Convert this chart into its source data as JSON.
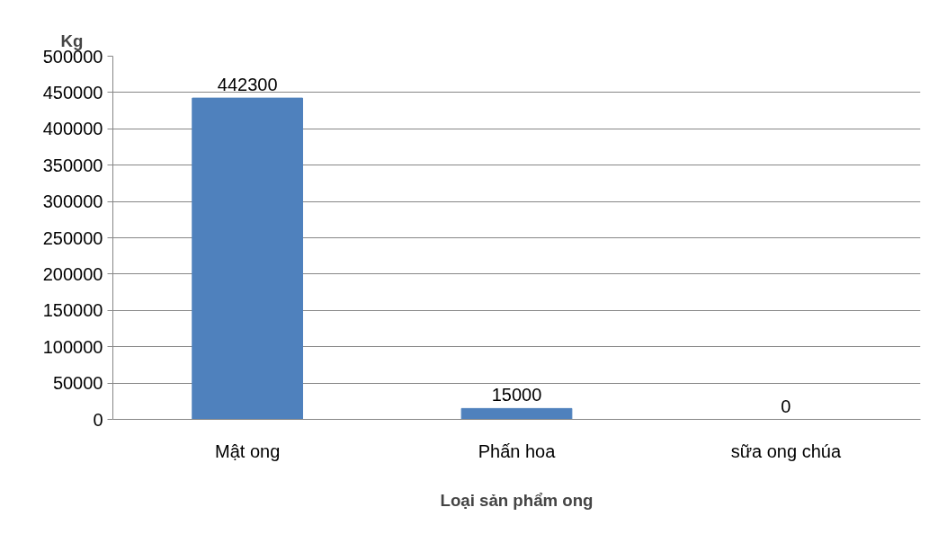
{
  "chart_data": {
    "type": "bar",
    "ylabel": "Kg",
    "xlabel": "Loại sản phẩm ong",
    "categories": [
      "Mật ong",
      "Phấn hoa",
      "sữa ong chúa"
    ],
    "values": [
      442300,
      15000,
      0
    ],
    "color": "#4f81bd",
    "ylim": [
      0,
      500000
    ],
    "yticks": [
      0,
      50000,
      100000,
      150000,
      200000,
      250000,
      300000,
      350000,
      400000,
      450000,
      500000
    ],
    "grid": "y",
    "data_labels": true
  }
}
